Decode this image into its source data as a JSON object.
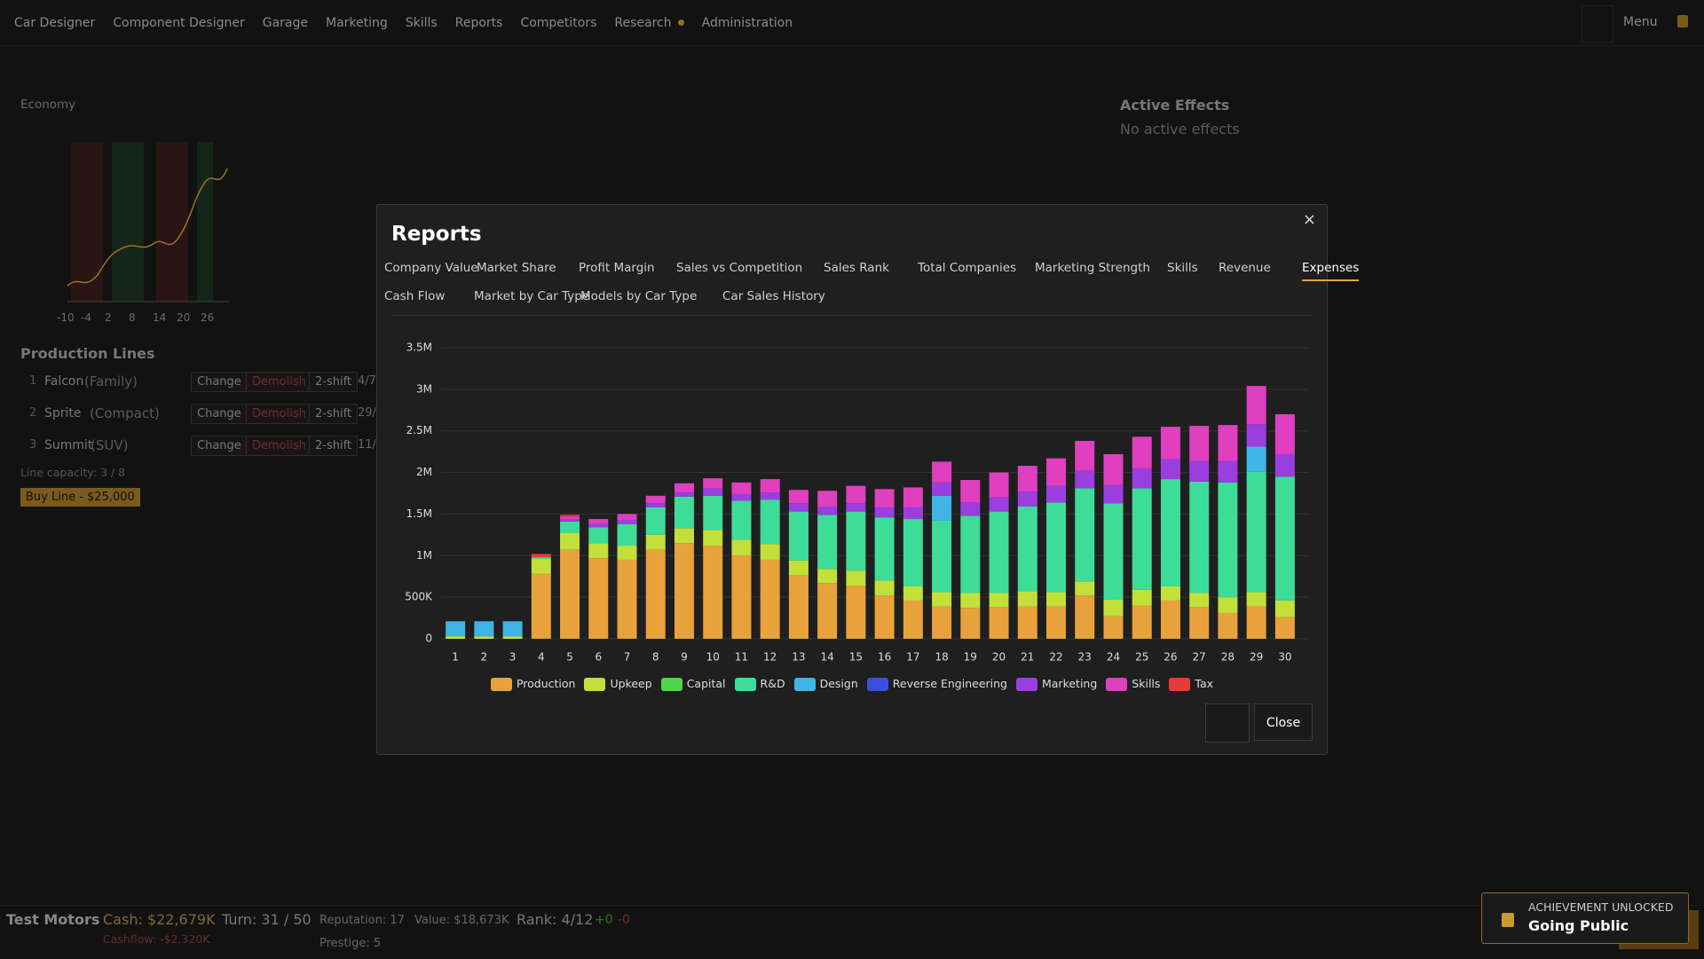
{
  "nav": {
    "items": [
      "Car Designer",
      "Component Designer",
      "Garage",
      "Marketing",
      "Skills",
      "Reports",
      "Competitors",
      "Research",
      "Administration"
    ],
    "menu": "Menu"
  },
  "economy": {
    "title": "Economy",
    "x_labels": [
      "-10",
      "-4",
      "2",
      "8",
      "14",
      "20",
      "26"
    ]
  },
  "active_effects": {
    "title": "Active Effects",
    "text": "No active effects"
  },
  "production_lines": {
    "title": "Production Lines",
    "rows": [
      {
        "index": "1",
        "name": "Falcon",
        "type": "(Family)",
        "change": "Change",
        "demolish": "Demolish",
        "shift": "2-shift",
        "status": "4/7"
      },
      {
        "index": "2",
        "name": "Sprite",
        "type": "(Compact)",
        "change": "Change",
        "demolish": "Demolish",
        "shift": "2-shift",
        "status": "29/"
      },
      {
        "index": "3",
        "name": "Summit",
        "type": "(SUV)",
        "change": "Change",
        "demolish": "Demolish",
        "shift": "2-shift",
        "status": "11/"
      }
    ],
    "capacity": "Line capacity: 3 / 8",
    "buy": "Buy Line - $25,000"
  },
  "modal": {
    "title": "Reports",
    "tabs": [
      "Company Value",
      "Market Share",
      "Profit Margin",
      "Sales vs Competition",
      "Sales Rank",
      "Total Companies",
      "Marketing Strength",
      "Skills",
      "Revenue",
      "Expenses",
      "Cash Flow",
      "Market by Car Type",
      "Models by Car Type",
      "Car Sales History"
    ],
    "active_tab": 9,
    "close": "Close"
  },
  "chart_data": {
    "type": "stacked_bar",
    "categories": [
      "1",
      "2",
      "3",
      "4",
      "5",
      "6",
      "7",
      "8",
      "9",
      "10",
      "11",
      "12",
      "13",
      "14",
      "15",
      "16",
      "17",
      "18",
      "19",
      "20",
      "21",
      "22",
      "23",
      "24",
      "25",
      "26",
      "27",
      "28",
      "29",
      "30"
    ],
    "ylim": [
      0,
      3500000
    ],
    "yticks": [
      0,
      {
        "value": 500000,
        "label": "500K"
      },
      {
        "value": 1000000,
        "label": "1M"
      },
      {
        "value": 1500000,
        "label": "1.5M"
      },
      {
        "value": 2000000,
        "label": "2M"
      },
      {
        "value": 2500000,
        "label": "2.5M"
      },
      {
        "value": 3000000,
        "label": "3M"
      },
      {
        "value": 3500000,
        "label": "3.5M"
      }
    ],
    "grid": true,
    "legend": "bottom",
    "series": [
      {
        "name": "Production",
        "color": "#e8a23c",
        "values": [
          0,
          0,
          0,
          780000,
          1070000,
          970000,
          950000,
          1070000,
          1150000,
          1120000,
          1000000,
          950000,
          760000,
          670000,
          640000,
          520000,
          460000,
          390000,
          370000,
          380000,
          390000,
          390000,
          520000,
          270000,
          400000,
          460000,
          380000,
          310000,
          390000,
          260000
        ]
      },
      {
        "name": "Upkeep",
        "color": "#c3df3a",
        "values": [
          30000,
          30000,
          30000,
          180000,
          200000,
          180000,
          170000,
          180000,
          180000,
          190000,
          190000,
          190000,
          180000,
          170000,
          180000,
          180000,
          170000,
          170000,
          180000,
          170000,
          180000,
          170000,
          170000,
          200000,
          190000,
          170000,
          170000,
          190000,
          170000,
          200000
        ]
      },
      {
        "name": "Capital",
        "color": "#4fd64a",
        "values": [
          0,
          0,
          0,
          0,
          0,
          0,
          0,
          0,
          0,
          0,
          0,
          0,
          0,
          0,
          0,
          0,
          0,
          0,
          0,
          0,
          0,
          0,
          0,
          0,
          0,
          0,
          0,
          0,
          0,
          0
        ]
      },
      {
        "name": "R&D",
        "color": "#3ddc99",
        "values": [
          0,
          0,
          0,
          20000,
          140000,
          190000,
          260000,
          330000,
          380000,
          410000,
          470000,
          530000,
          590000,
          650000,
          710000,
          760000,
          810000,
          860000,
          930000,
          980000,
          1020000,
          1080000,
          1120000,
          1160000,
          1220000,
          1290000,
          1340000,
          1380000,
          1450000,
          1490000
        ]
      },
      {
        "name": "Design",
        "color": "#3fb4e6",
        "values": [
          180000,
          180000,
          180000,
          0,
          0,
          0,
          0,
          0,
          0,
          0,
          0,
          0,
          0,
          0,
          0,
          0,
          0,
          300000,
          0,
          0,
          0,
          0,
          0,
          0,
          0,
          0,
          0,
          0,
          300000,
          0
        ]
      },
      {
        "name": "Reverse Engineering",
        "color": "#3a4ee0",
        "values": [
          0,
          0,
          0,
          0,
          0,
          0,
          0,
          0,
          0,
          0,
          0,
          0,
          0,
          0,
          0,
          0,
          0,
          0,
          0,
          0,
          0,
          0,
          0,
          0,
          0,
          0,
          0,
          0,
          0,
          0
        ]
      },
      {
        "name": "Marketing",
        "color": "#9b3ee0",
        "values": [
          0,
          0,
          0,
          0,
          30000,
          40000,
          50000,
          50000,
          50000,
          90000,
          80000,
          90000,
          100000,
          100000,
          100000,
          120000,
          140000,
          160000,
          160000,
          170000,
          180000,
          200000,
          210000,
          220000,
          240000,
          240000,
          250000,
          260000,
          270000,
          270000
        ]
      },
      {
        "name": "Skills",
        "color": "#e03fbf",
        "values": [
          0,
          0,
          0,
          0,
          30000,
          60000,
          70000,
          90000,
          110000,
          120000,
          140000,
          160000,
          160000,
          190000,
          210000,
          220000,
          240000,
          250000,
          270000,
          300000,
          310000,
          330000,
          360000,
          370000,
          380000,
          390000,
          420000,
          430000,
          460000,
          480000
        ]
      },
      {
        "name": "Tax",
        "color": "#e63b3b",
        "values": [
          0,
          0,
          0,
          40000,
          20000,
          0,
          0,
          0,
          0,
          0,
          0,
          0,
          0,
          0,
          0,
          0,
          0,
          0,
          0,
          0,
          0,
          0,
          0,
          0,
          0,
          0,
          0,
          0,
          0,
          0
        ]
      }
    ]
  },
  "status_bar": {
    "company": "Test Motors",
    "cash": "Cash: $22,679K",
    "cashflow": "Cashflow: -$2,320K",
    "turn": "Turn: 31 / 50",
    "reputation": "Reputation: 17",
    "prestige": "Prestige: 5",
    "value": "Value: $18,673K",
    "rank": "Rank: 4/12",
    "rank_up": "+0",
    "rank_down": "-0"
  },
  "toast": {
    "heading": "ACHIEVEMENT UNLOCKED",
    "title": "Going Public"
  }
}
